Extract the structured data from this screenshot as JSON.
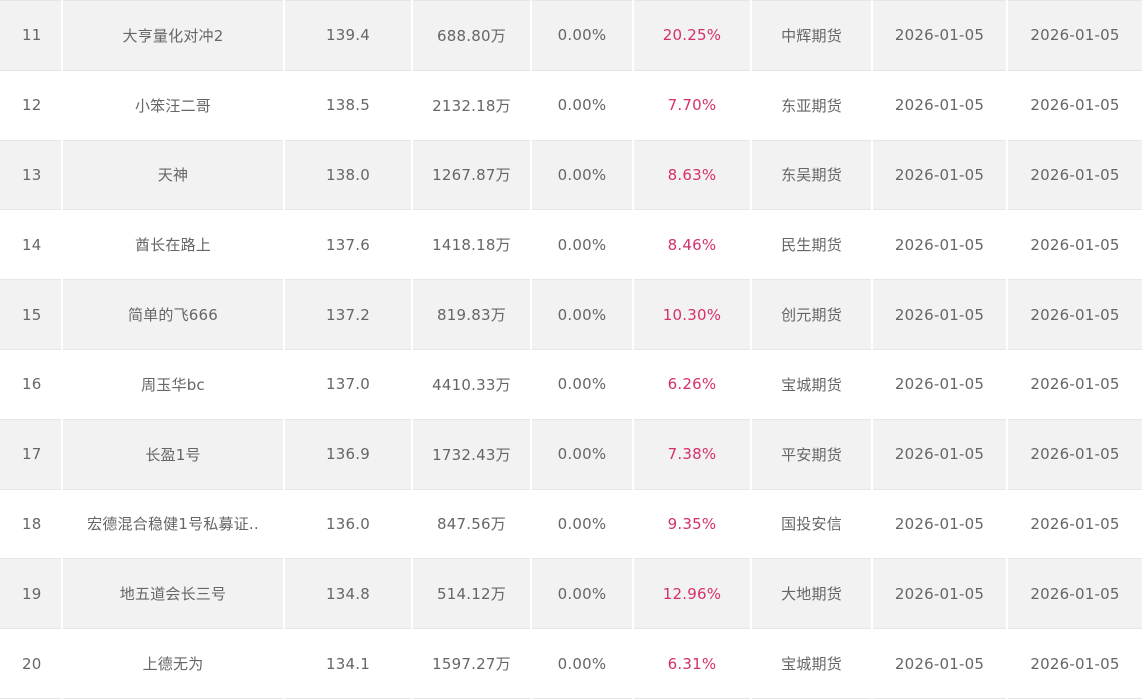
{
  "colors": {
    "return_text": "#d62f6c",
    "body_text": "#666666",
    "odd_row_bg": "#f2f2f2",
    "even_row_bg": "#ffffff"
  },
  "rows": [
    {
      "rank": "11",
      "name": "大亨量化对冲2",
      "nav": "139.4",
      "scale": "688.80万",
      "pct": "0.00%",
      "ret": "20.25%",
      "broker": "中辉期货",
      "date1": "2026-01-05",
      "date2": "2026-01-05"
    },
    {
      "rank": "12",
      "name": "小笨汪二哥",
      "nav": "138.5",
      "scale": "2132.18万",
      "pct": "0.00%",
      "ret": "7.70%",
      "broker": "东亚期货",
      "date1": "2026-01-05",
      "date2": "2026-01-05"
    },
    {
      "rank": "13",
      "name": "天神",
      "nav": "138.0",
      "scale": "1267.87万",
      "pct": "0.00%",
      "ret": "8.63%",
      "broker": "东吴期货",
      "date1": "2026-01-05",
      "date2": "2026-01-05"
    },
    {
      "rank": "14",
      "name": "酋长在路上",
      "nav": "137.6",
      "scale": "1418.18万",
      "pct": "0.00%",
      "ret": "8.46%",
      "broker": "民生期货",
      "date1": "2026-01-05",
      "date2": "2026-01-05"
    },
    {
      "rank": "15",
      "name": "简单的飞666",
      "nav": "137.2",
      "scale": "819.83万",
      "pct": "0.00%",
      "ret": "10.30%",
      "broker": "创元期货",
      "date1": "2026-01-05",
      "date2": "2026-01-05"
    },
    {
      "rank": "16",
      "name": "周玉华bc",
      "nav": "137.0",
      "scale": "4410.33万",
      "pct": "0.00%",
      "ret": "6.26%",
      "broker": "宝城期货",
      "date1": "2026-01-05",
      "date2": "2026-01-05"
    },
    {
      "rank": "17",
      "name": "长盈1号",
      "nav": "136.9",
      "scale": "1732.43万",
      "pct": "0.00%",
      "ret": "7.38%",
      "broker": "平安期货",
      "date1": "2026-01-05",
      "date2": "2026-01-05"
    },
    {
      "rank": "18",
      "name": "宏德混合稳健1号私募证..",
      "nav": "136.0",
      "scale": "847.56万",
      "pct": "0.00%",
      "ret": "9.35%",
      "broker": "国投安信",
      "date1": "2026-01-05",
      "date2": "2026-01-05"
    },
    {
      "rank": "19",
      "name": "地五道会长三号",
      "nav": "134.8",
      "scale": "514.12万",
      "pct": "0.00%",
      "ret": "12.96%",
      "broker": "大地期货",
      "date1": "2026-01-05",
      "date2": "2026-01-05"
    },
    {
      "rank": "20",
      "name": "上德无为",
      "nav": "134.1",
      "scale": "1597.27万",
      "pct": "0.00%",
      "ret": "6.31%",
      "broker": "宝城期货",
      "date1": "2026-01-05",
      "date2": "2026-01-05"
    }
  ]
}
